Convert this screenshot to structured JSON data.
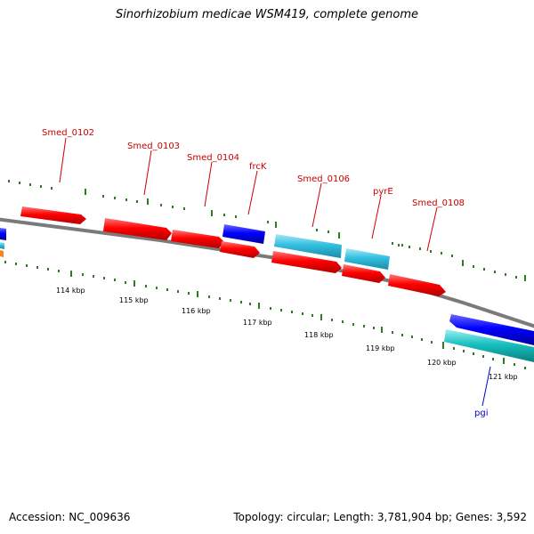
{
  "title": "Sinorhizobium medicae WSM419, complete genome",
  "footer": {
    "accession": "Accession: NC_009636",
    "summary": "Topology: circular; Length: 3,781,904 bp; Genes: 3,592"
  },
  "colors": {
    "background": "#ffffff",
    "backbone": "#808080",
    "tick": "#2e7d22",
    "gene_red": "#ff0000",
    "gene_blue": "#0000ff",
    "gene_cyan": "#33bfe0",
    "label_red": "#cc0000",
    "label_blue": "#0000cc"
  },
  "scale_labels": [
    "114 kbp",
    "115 kbp",
    "116 kbp",
    "117 kbp",
    "118 kbp",
    "119 kbp",
    "120 kbp",
    "121 kbp"
  ],
  "gene_labels": [
    {
      "name": "Smed_0102",
      "color": "label_red"
    },
    {
      "name": "Smed_0103",
      "color": "label_red"
    },
    {
      "name": "Smed_0104",
      "color": "label_red"
    },
    {
      "name": "frcK",
      "color": "label_red"
    },
    {
      "name": "Smed_0106",
      "color": "label_red"
    },
    {
      "name": "pyrE",
      "color": "label_red"
    },
    {
      "name": "Smed_0108",
      "color": "label_red"
    },
    {
      "name": "pgi",
      "color": "label_blue"
    }
  ]
}
